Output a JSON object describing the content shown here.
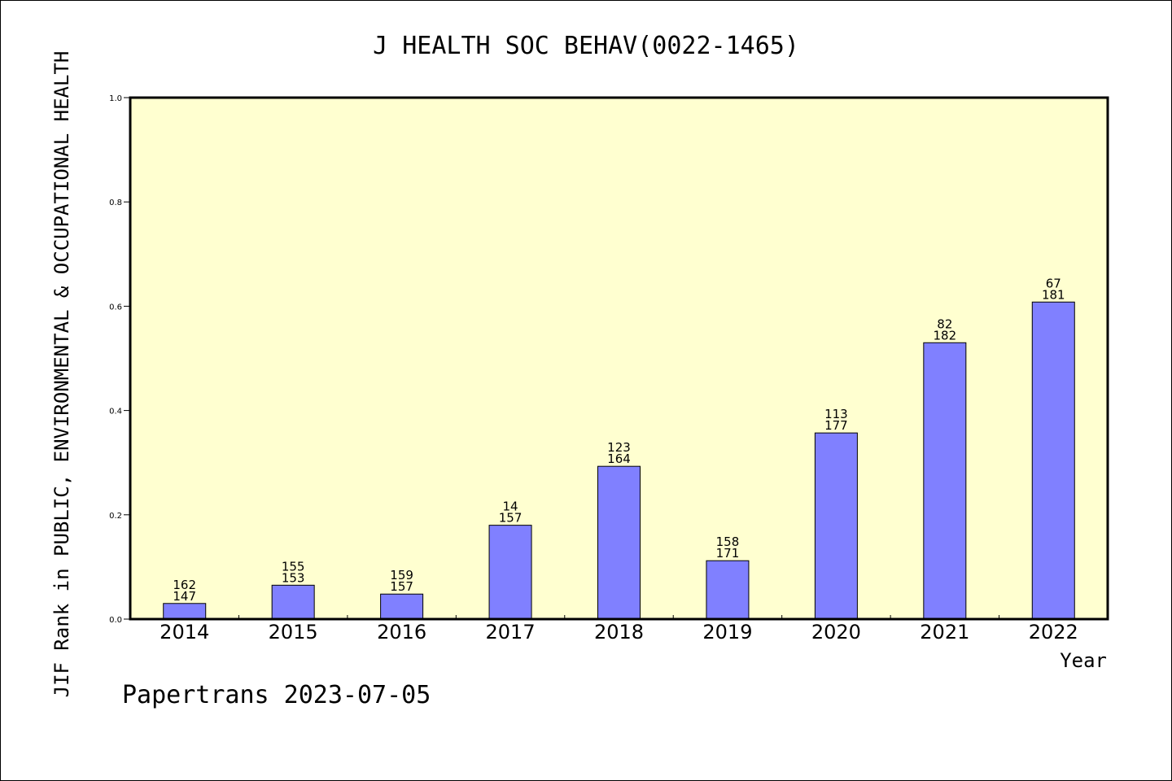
{
  "chart_data": {
    "type": "bar",
    "title": "J HEALTH SOC BEHAV(0022-1465)",
    "xlabel": "Year",
    "ylabel": "JIF Rank in PUBLIC, ENVIRONMENTAL & OCCUPATIONAL HEALTH",
    "categories": [
      "2014",
      "2015",
      "2016",
      "2017",
      "2018",
      "2019",
      "2020",
      "2021",
      "2022"
    ],
    "values": [
      0.03,
      0.065,
      0.048,
      0.18,
      0.293,
      0.112,
      0.357,
      0.53,
      0.608
    ],
    "rank_labels": [
      "162",
      "155",
      "159",
      "14",
      "123",
      "158",
      "113",
      "82",
      "67"
    ],
    "total_labels": [
      "147",
      "153",
      "157",
      "157",
      "164",
      "171",
      "177",
      "182",
      "181"
    ],
    "ylim": [
      0,
      1.0
    ],
    "yticks": [
      "0.0",
      "0.2",
      "0.4",
      "0.6",
      "0.8",
      "1.0"
    ],
    "grid": false,
    "colors": {
      "plot_background": "#ffffd0",
      "bar_fill": "#8080ff",
      "bar_stroke": "#000000"
    }
  },
  "footer": {
    "text": "Papertrans 2023-07-05"
  }
}
